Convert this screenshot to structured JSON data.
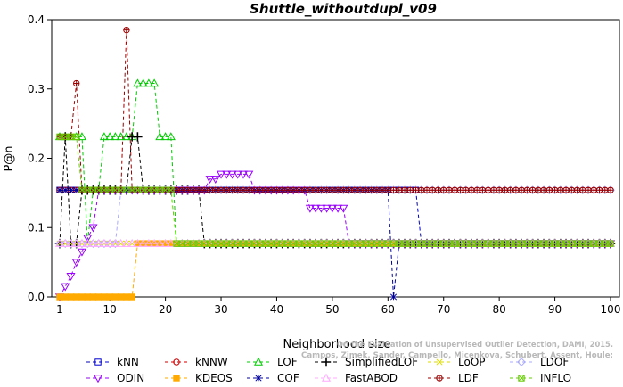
{
  "chart_data": {
    "type": "line",
    "title": "Shuttle_withoutdupl_v09",
    "xlabel": "Neighborhood size",
    "ylabel": "P@n",
    "xlim": [
      0,
      101
    ],
    "ylim": [
      0,
      0.4
    ],
    "xticks": [
      1,
      10,
      20,
      30,
      40,
      50,
      60,
      70,
      80,
      90,
      100
    ],
    "yticks": [
      0.0,
      0.1,
      0.2,
      0.3,
      0.4
    ],
    "ytick_labels": [
      "0.0",
      "0.1",
      "0.2",
      "0.3",
      "0.4"
    ],
    "grid": false,
    "legend_position": "bottom",
    "watermark": "Campos, Zimek, Sander, Campello, Micenkova, Schubert, Assent, Houle: On the Evaluation of Unsupervised Outlier Detection, DAMI, 2015.",
    "series": [
      {
        "name": "kNN",
        "color": "#0000cc",
        "marker": "square",
        "points": [
          [
            1,
            0.154
          ],
          [
            65,
            0.154
          ],
          [
            66,
            0.077
          ],
          [
            100,
            0.077
          ]
        ]
      },
      {
        "name": "kNNW",
        "color": "#cc0000",
        "marker": "circle",
        "points": [
          [
            1,
            0.154
          ],
          [
            100,
            0.154
          ]
        ]
      },
      {
        "name": "LOF",
        "color": "#00cc00",
        "marker": "triangle-up",
        "points": [
          [
            1,
            0.231
          ],
          [
            5,
            0.231
          ],
          [
            6,
            0.077
          ],
          [
            7,
            0.154
          ],
          [
            8,
            0.154
          ],
          [
            9,
            0.231
          ],
          [
            14,
            0.231
          ],
          [
            15,
            0.308
          ],
          [
            18,
            0.308
          ],
          [
            19,
            0.231
          ],
          [
            21,
            0.231
          ],
          [
            22,
            0.077
          ],
          [
            100,
            0.077
          ]
        ]
      },
      {
        "name": "SimplifiedLOF",
        "color": "#000000",
        "marker": "plus",
        "points": [
          [
            1,
            0.077
          ],
          [
            2,
            0.231
          ],
          [
            3,
            0.077
          ],
          [
            4,
            0.077
          ],
          [
            5,
            0.154
          ],
          [
            13,
            0.154
          ],
          [
            14,
            0.231
          ],
          [
            15,
            0.231
          ],
          [
            16,
            0.154
          ],
          [
            26,
            0.154
          ],
          [
            27,
            0.077
          ],
          [
            100,
            0.077
          ]
        ]
      },
      {
        "name": "LoOP",
        "color": "#dddd00",
        "marker": "x",
        "points": [
          [
            1,
            0.077
          ],
          [
            100,
            0.077
          ]
        ]
      },
      {
        "name": "LDOF",
        "color": "#aaaaff",
        "marker": "diamond",
        "points": [
          [
            1,
            0.077
          ],
          [
            4,
            0.077
          ],
          [
            5,
            0.077
          ],
          [
            6,
            0.077
          ],
          [
            7,
            0.077
          ],
          [
            8,
            0.077
          ],
          [
            9,
            0.077
          ],
          [
            10,
            0.077
          ],
          [
            11,
            0.077
          ],
          [
            12,
            0.154
          ],
          [
            100,
            0.154
          ]
        ]
      },
      {
        "name": "ODIN",
        "color": "#9900ff",
        "marker": "triangle-down",
        "points": [
          [
            1,
            0.0
          ],
          [
            2,
            0.015
          ],
          [
            3,
            0.03
          ],
          [
            4,
            0.05
          ],
          [
            5,
            0.065
          ],
          [
            6,
            0.085
          ],
          [
            7,
            0.1
          ],
          [
            8,
            0.154
          ],
          [
            27,
            0.154
          ],
          [
            28,
            0.17
          ],
          [
            29,
            0.17
          ],
          [
            30,
            0.177
          ],
          [
            35,
            0.177
          ],
          [
            36,
            0.154
          ],
          [
            45,
            0.154
          ],
          [
            46,
            0.128
          ],
          [
            52,
            0.128
          ],
          [
            53,
            0.077
          ],
          [
            100,
            0.077
          ]
        ]
      },
      {
        "name": "KDEOS",
        "color": "#ffaa00",
        "marker": "square-filled",
        "points": [
          [
            1,
            0.0
          ],
          [
            14,
            0.0
          ],
          [
            15,
            0.077
          ],
          [
            100,
            0.077
          ]
        ]
      },
      {
        "name": "COF",
        "color": "#000099",
        "marker": "asterisk",
        "points": [
          [
            1,
            0.154
          ],
          [
            60,
            0.154
          ],
          [
            61,
            0.0
          ],
          [
            62,
            0.077
          ],
          [
            100,
            0.077
          ]
        ]
      },
      {
        "name": "FastABOD",
        "color": "#ffaaff",
        "marker": "triangle-up",
        "points": [
          [
            1,
            0.077
          ],
          [
            100,
            0.077
          ]
        ]
      },
      {
        "name": "LDF",
        "color": "#990000",
        "marker": "circle-plus",
        "points": [
          [
            1,
            0.231
          ],
          [
            3,
            0.231
          ],
          [
            4,
            0.308
          ],
          [
            5,
            0.154
          ],
          [
            12,
            0.154
          ],
          [
            13,
            0.385
          ],
          [
            14,
            0.154
          ],
          [
            100,
            0.154
          ]
        ]
      },
      {
        "name": "INFLO",
        "color": "#66cc00",
        "marker": "square-x",
        "points": [
          [
            1,
            0.231
          ],
          [
            4,
            0.231
          ],
          [
            5,
            0.154
          ],
          [
            21,
            0.154
          ],
          [
            22,
            0.077
          ],
          [
            100,
            0.077
          ]
        ]
      }
    ]
  }
}
